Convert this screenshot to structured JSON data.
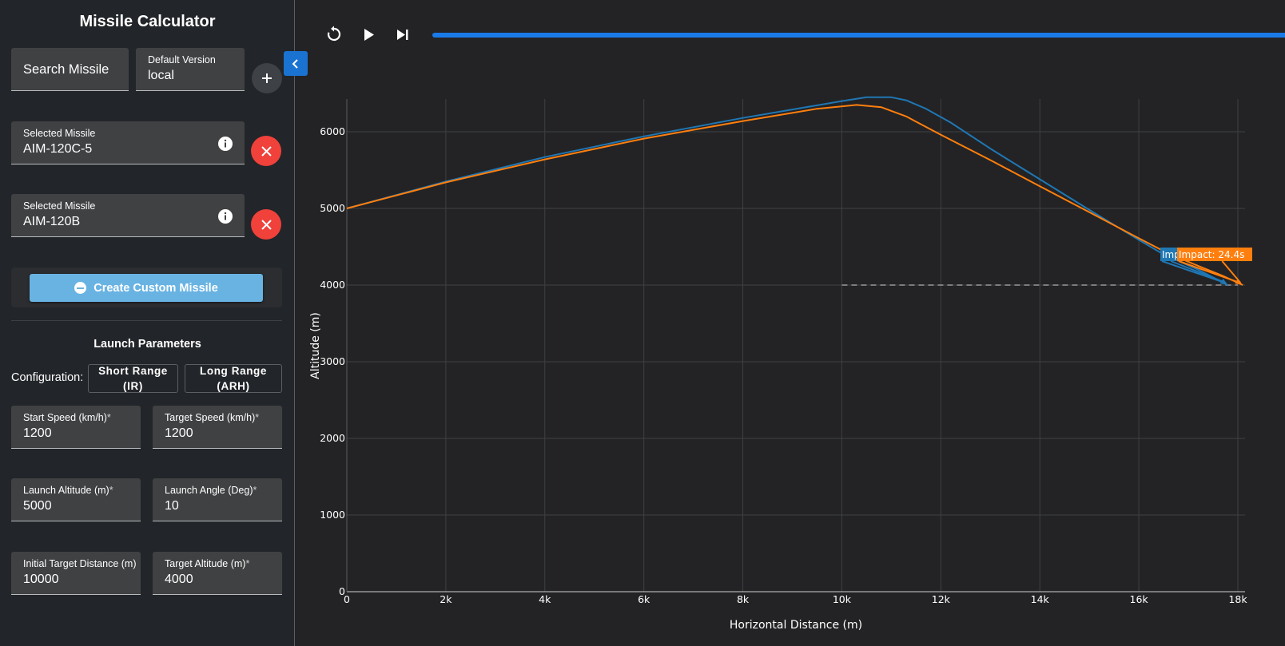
{
  "app": {
    "title": "Missile Calculator"
  },
  "controls": {
    "search_label": "Search Missile",
    "version": {
      "label": "Default Version",
      "value": "local"
    }
  },
  "selected": [
    {
      "label": "Selected Missile",
      "value": "AIM-120C-5"
    },
    {
      "label": "Selected Missile",
      "value": "AIM-120B"
    }
  ],
  "custom_label": "Create Custom Missile",
  "launch": {
    "title": "Launch Parameters",
    "config_label": "Configuration:",
    "config_options": [
      "Short Range (IR)",
      "Long Range (ARH)"
    ],
    "fields": [
      {
        "label": "Start Speed (km/h)",
        "req": "*",
        "value": "1200"
      },
      {
        "label": "Target Speed (km/h)",
        "req": "*",
        "value": "1200"
      },
      {
        "label": "Launch Altitude (m)",
        "req": "*",
        "value": "5000"
      },
      {
        "label": "Launch Angle (Deg)",
        "req": "*",
        "value": "10"
      },
      {
        "label": "Initial Target Distance (m)",
        "req": "",
        "value": "10000"
      },
      {
        "label": "Target Altitude (m)",
        "req": "*",
        "value": "4000"
      }
    ]
  },
  "playback": {
    "progress_fraction": 1.0
  },
  "icons": {
    "restart": "restart-icon",
    "play": "play-icon",
    "skip": "skip-end-icon",
    "collapse": "chevron-left-icon",
    "add": "plus-icon",
    "remove": "close-icon",
    "info": "info-icon"
  },
  "colors": {
    "series1": "#1f77b4",
    "series2": "#ff7f0e",
    "remove": "#f0413b",
    "accent": "#1a73d1"
  },
  "chart_data": {
    "type": "line",
    "xlabel": "Horizontal Distance (m)",
    "ylabel": "Altitude (m)",
    "xlim": [
      0,
      18000
    ],
    "ylim": [
      0,
      6400
    ],
    "x_ticks": [
      0,
      2000,
      4000,
      6000,
      8000,
      10000,
      12000,
      14000,
      16000,
      18000
    ],
    "x_tick_labels": [
      "0",
      "2k",
      "4k",
      "6k",
      "8k",
      "10k",
      "12k",
      "14k",
      "16k",
      "18k"
    ],
    "y_ticks": [
      0,
      1000,
      2000,
      3000,
      4000,
      5000,
      6000
    ],
    "y_tick_labels": [
      "0",
      "1000",
      "2000",
      "3000",
      "4000",
      "5000",
      "6000"
    ],
    "grid": true,
    "series": [
      {
        "color": "#1f77b4",
        "x": [
          0,
          2000,
          4000,
          6000,
          8000,
          10000,
          10500,
          11000,
          11300,
          11700,
          12200,
          13000,
          14000,
          15000,
          16000,
          16500,
          17200,
          17800
        ],
        "y": [
          5000,
          5350,
          5670,
          5940,
          6180,
          6400,
          6450,
          6450,
          6410,
          6300,
          6120,
          5780,
          5380,
          4980,
          4590,
          4400,
          4200,
          4000
        ],
        "annotation": "Imp"
      },
      {
        "color": "#ff7f0e",
        "x": [
          0,
          2000,
          4000,
          6000,
          8000,
          9500,
          10300,
          10800,
          11300,
          12000,
          13000,
          14000,
          15000,
          16000,
          16600,
          17200,
          17700,
          18100
        ],
        "y": [
          5000,
          5340,
          5640,
          5910,
          6140,
          6300,
          6350,
          6320,
          6200,
          5960,
          5630,
          5290,
          4950,
          4610,
          4410,
          4250,
          4120,
          4000
        ],
        "annotation": "Impact: 24.4s"
      }
    ],
    "target_line": {
      "x": [
        10000,
        18000
      ],
      "y": [
        4000,
        4000
      ]
    }
  }
}
